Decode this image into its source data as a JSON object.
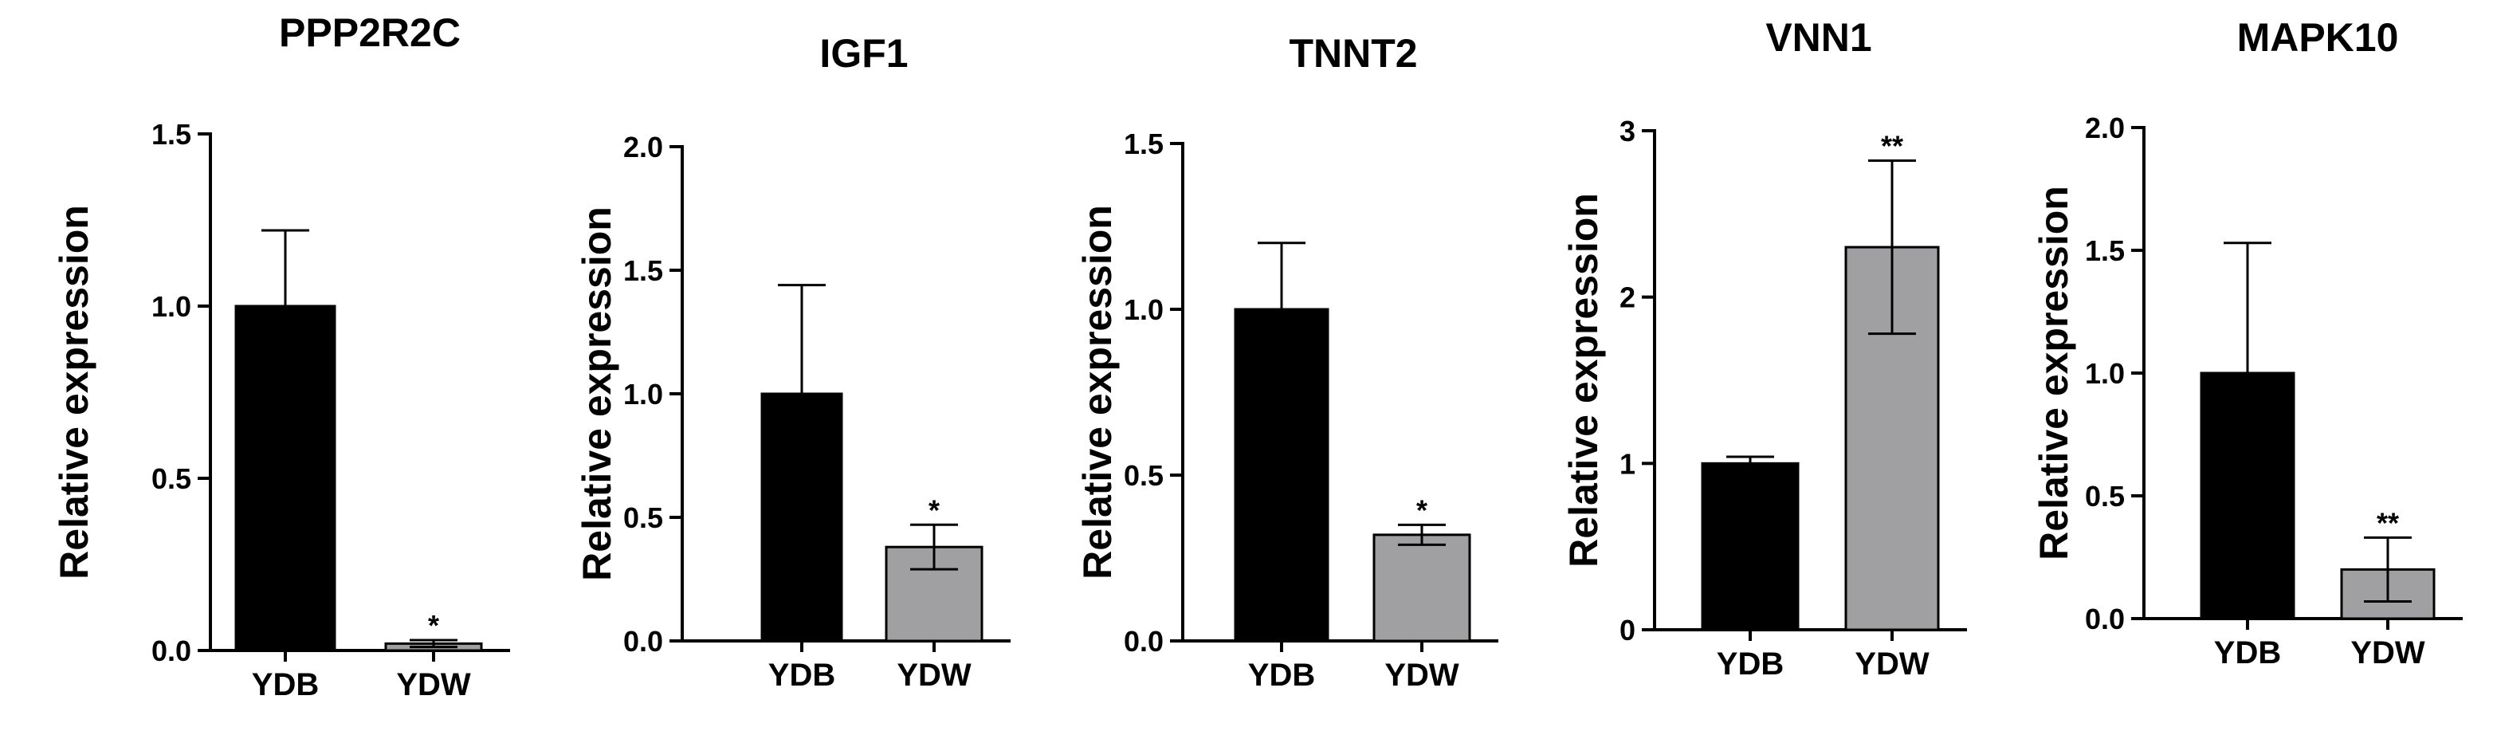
{
  "chart_data": [
    {
      "type": "bar",
      "title": "PPP2R2C",
      "ylabel": "Relative expression",
      "ylim": [
        0,
        1.5
      ],
      "yticks": [
        "0.0",
        "0.5",
        "1.0",
        "1.5"
      ],
      "categories": [
        "YDB",
        "YDW"
      ],
      "values": [
        1.0,
        0.02
      ],
      "errors": [
        0.22,
        0.01
      ],
      "significance": [
        "",
        "*"
      ],
      "colors": [
        "#000000",
        "#a0a0a3"
      ]
    },
    {
      "type": "bar",
      "title": "IGF1",
      "ylabel": "Relative expression",
      "ylim": [
        0,
        2.0
      ],
      "yticks": [
        "0.0",
        "0.5",
        "1.0",
        "1.5",
        "2.0"
      ],
      "categories": [
        "YDB",
        "YDW"
      ],
      "values": [
        1.0,
        0.38
      ],
      "errors": [
        0.44,
        0.09
      ],
      "significance": [
        "",
        "*"
      ],
      "colors": [
        "#000000",
        "#a0a0a3"
      ]
    },
    {
      "type": "bar",
      "title": "TNNT2",
      "ylabel": "Relative expression",
      "ylim": [
        0,
        1.5
      ],
      "yticks": [
        "0.0",
        "0.5",
        "1.0",
        "1.5"
      ],
      "categories": [
        "YDB",
        "YDW"
      ],
      "values": [
        1.0,
        0.32
      ],
      "errors": [
        0.2,
        0.03
      ],
      "significance": [
        "",
        "*"
      ],
      "colors": [
        "#000000",
        "#a0a0a3"
      ]
    },
    {
      "type": "bar",
      "title": "VNN1",
      "ylabel": "Relative expression",
      "ylim": [
        0,
        3
      ],
      "yticks": [
        "0",
        "1",
        "2",
        "3"
      ],
      "categories": [
        "YDB",
        "YDW"
      ],
      "values": [
        1.0,
        2.3
      ],
      "errors": [
        0.04,
        0.52
      ],
      "significance": [
        "",
        "**"
      ],
      "colors": [
        "#000000",
        "#a0a0a3"
      ]
    },
    {
      "type": "bar",
      "title": "MAPK10",
      "ylabel": "Relative expression",
      "ylim": [
        0,
        2.0
      ],
      "yticks": [
        "0.0",
        "0.5",
        "1.0",
        "1.5",
        "2.0"
      ],
      "categories": [
        "YDB",
        "YDW"
      ],
      "values": [
        1.0,
        0.2
      ],
      "errors": [
        0.53,
        0.13
      ],
      "significance": [
        "",
        "**"
      ],
      "colors": [
        "#000000",
        "#a0a0a3"
      ]
    }
  ]
}
